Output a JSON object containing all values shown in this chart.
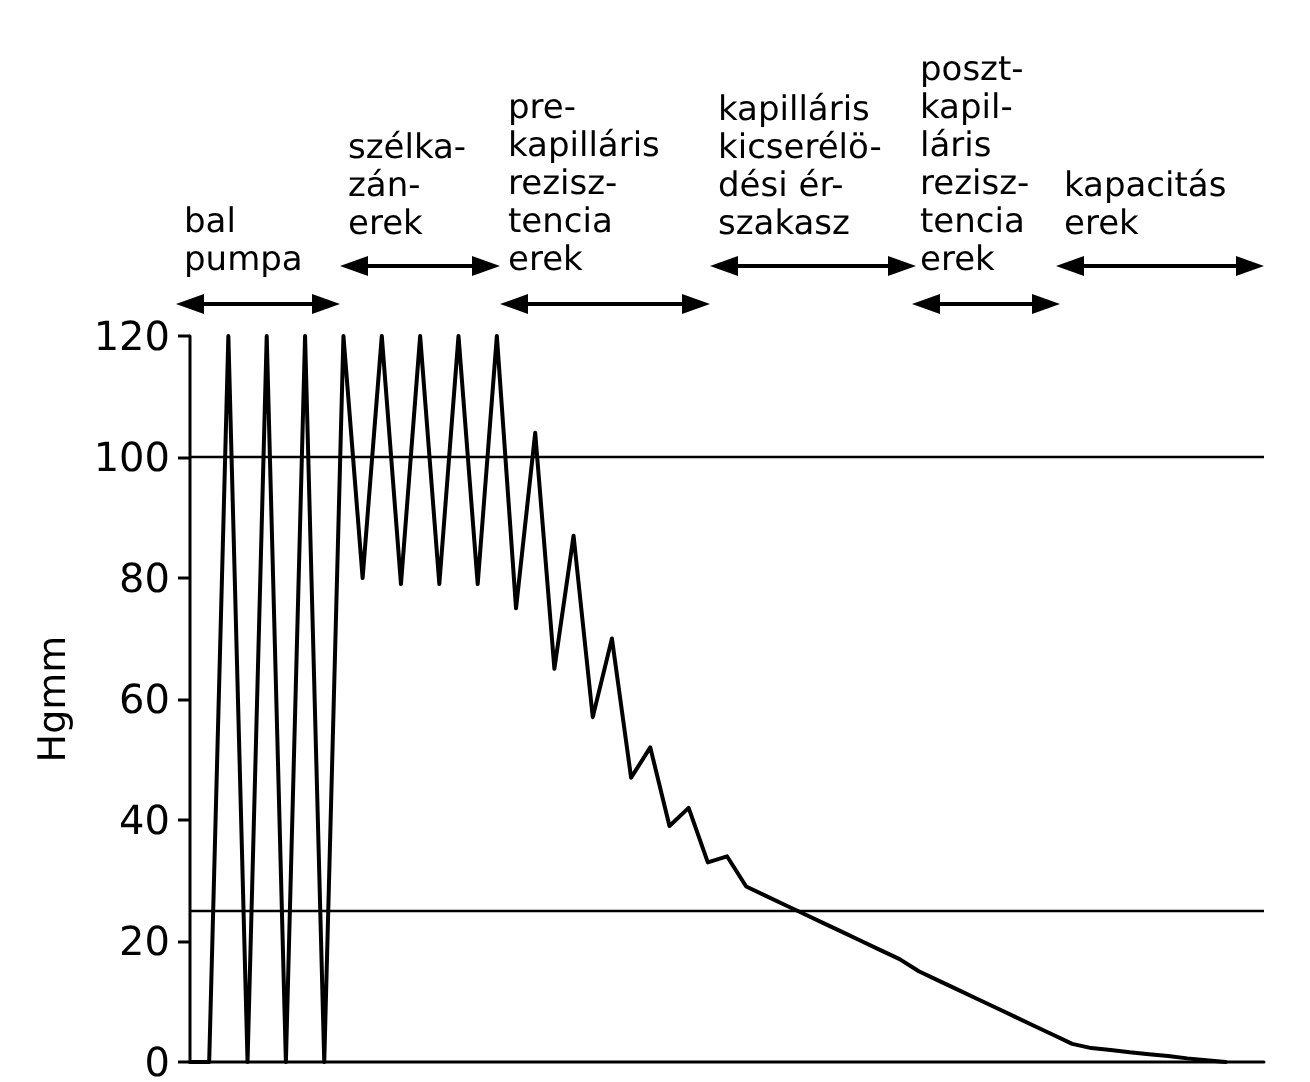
{
  "chart_data": {
    "type": "line",
    "ylabel": "Hgmm",
    "categories": [
      null,
      null,
      null,
      null,
      null,
      null,
      null,
      null,
      null,
      null,
      null,
      null,
      null,
      null,
      null,
      null,
      null,
      null,
      null,
      null,
      null,
      null,
      null,
      null,
      null,
      null,
      null,
      null,
      null,
      null,
      null,
      null,
      null,
      null,
      null,
      null,
      null,
      null,
      null,
      null,
      null,
      null,
      null,
      null,
      null,
      null,
      null,
      null,
      null,
      null,
      null,
      null,
      null,
      null,
      null,
      null,
      null
    ],
    "series": [
      {
        "color": "#000000",
        "values": [
          0,
          0,
          120,
          0,
          120,
          0,
          120,
          0,
          120,
          80,
          120,
          79,
          120,
          79,
          120,
          79,
          120,
          75,
          104,
          65,
          87,
          57,
          70,
          47,
          52,
          39,
          42,
          33,
          34,
          29,
          27.5,
          26,
          24.5,
          23,
          21.5,
          20,
          18.5,
          17,
          15,
          13.5,
          12,
          10.5,
          9,
          7.5,
          6,
          4.5,
          3,
          2.3,
          2,
          1.6,
          1.3,
          1,
          0.6,
          0.3,
          0,
          null,
          null
        ]
      }
    ],
    "ylim": [
      0,
      120
    ],
    "yticks": [
      0,
      20,
      40,
      60,
      80,
      100,
      120
    ],
    "ref_lines": [
      {
        "axis": "y",
        "value": 100,
        "color": "#000000"
      },
      {
        "axis": "y",
        "value": 25,
        "color": "#000000"
      }
    ],
    "annotations": [
      "bal\npumpa",
      "szélka-\nzán-\nerek",
      "pre-\nkapilláris\nrezisz-\ntencia\nerek",
      "kapilláris\nkicserélö-\ndési ér-\nszakasz",
      "poszt-\nkapil-\nláris\nrezisz-\ntencia\nerek",
      "kapacitás\nerek"
    ],
    "grid": false,
    "marker": "none",
    "line_style": "solid",
    "tick_labels": "y"
  }
}
